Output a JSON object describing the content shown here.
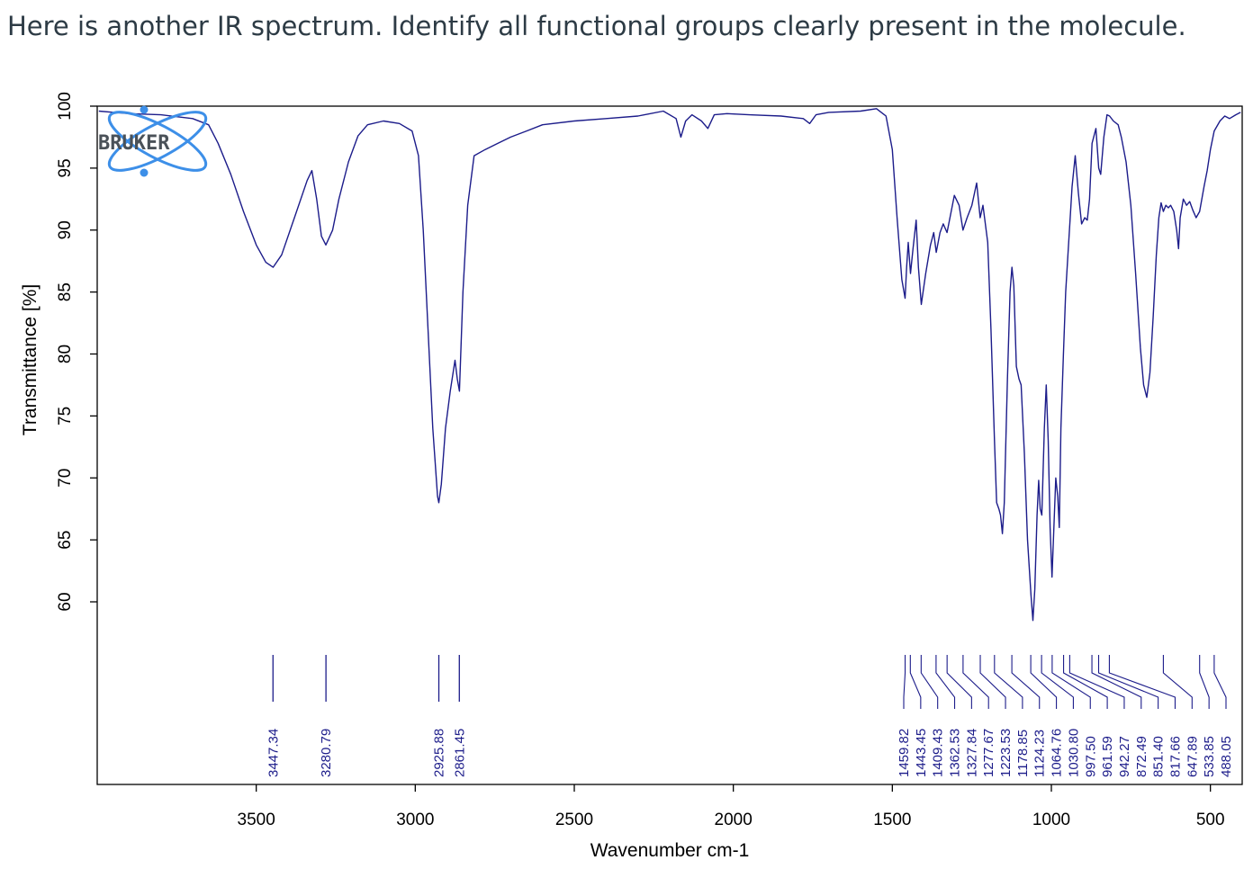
{
  "question": "Here is another IR spectrum. Identify all functional groups clearly present in the molecule.",
  "logo": {
    "text": "BRUKER",
    "icon": "atom-icon",
    "color": "#3d8fe8"
  },
  "colors": {
    "spectrum": "#1c1c8a",
    "peaklines": "#1c1c8a",
    "axis": "#000000"
  },
  "chart_data": {
    "type": "line",
    "title": "",
    "xlabel": "Wavenumber cm-1",
    "ylabel": "Transmittance [%]",
    "xlim": [
      4000,
      400
    ],
    "ylim": [
      50,
      100
    ],
    "x_reversed": true,
    "grid": false,
    "xticks": [
      3500,
      3000,
      2500,
      2000,
      1500,
      1000,
      500
    ],
    "yticks": [
      60,
      65,
      70,
      75,
      80,
      85,
      90,
      95,
      100
    ],
    "series": [
      {
        "points": [
          [
            3995,
            99.6
          ],
          [
            3900,
            99.4
          ],
          [
            3800,
            99.3
          ],
          [
            3700,
            99.0
          ],
          [
            3650,
            98.5
          ],
          [
            3620,
            97.0
          ],
          [
            3580,
            94.5
          ],
          [
            3540,
            91.5
          ],
          [
            3500,
            88.8
          ],
          [
            3470,
            87.4
          ],
          [
            3447,
            87.0
          ],
          [
            3420,
            88.0
          ],
          [
            3380,
            91.0
          ],
          [
            3340,
            94.0
          ],
          [
            3325,
            94.8
          ],
          [
            3310,
            92.5
          ],
          [
            3295,
            89.5
          ],
          [
            3281,
            88.8
          ],
          [
            3260,
            90.0
          ],
          [
            3240,
            92.5
          ],
          [
            3210,
            95.5
          ],
          [
            3180,
            97.6
          ],
          [
            3150,
            98.5
          ],
          [
            3100,
            98.8
          ],
          [
            3050,
            98.6
          ],
          [
            3010,
            98.0
          ],
          [
            2990,
            96.0
          ],
          [
            2975,
            90.0
          ],
          [
            2960,
            82.0
          ],
          [
            2945,
            74.0
          ],
          [
            2930,
            68.5
          ],
          [
            2926,
            68.0
          ],
          [
            2918,
            69.5
          ],
          [
            2905,
            74.0
          ],
          [
            2890,
            77.0
          ],
          [
            2875,
            79.5
          ],
          [
            2868,
            78.0
          ],
          [
            2861,
            77.0
          ],
          [
            2850,
            85.0
          ],
          [
            2835,
            92.0
          ],
          [
            2815,
            96.0
          ],
          [
            2780,
            96.5
          ],
          [
            2740,
            97.0
          ],
          [
            2700,
            97.5
          ],
          [
            2650,
            98.0
          ],
          [
            2600,
            98.5
          ],
          [
            2500,
            98.8
          ],
          [
            2400,
            99.0
          ],
          [
            2300,
            99.2
          ],
          [
            2220,
            99.6
          ],
          [
            2180,
            99.0
          ],
          [
            2165,
            97.5
          ],
          [
            2150,
            98.8
          ],
          [
            2130,
            99.3
          ],
          [
            2100,
            98.8
          ],
          [
            2080,
            98.2
          ],
          [
            2060,
            99.3
          ],
          [
            2020,
            99.4
          ],
          [
            1950,
            99.3
          ],
          [
            1850,
            99.2
          ],
          [
            1780,
            99.0
          ],
          [
            1760,
            98.6
          ],
          [
            1740,
            99.3
          ],
          [
            1700,
            99.5
          ],
          [
            1600,
            99.6
          ],
          [
            1550,
            99.8
          ],
          [
            1520,
            99.2
          ],
          [
            1500,
            96.5
          ],
          [
            1485,
            91.0
          ],
          [
            1470,
            86.0
          ],
          [
            1460,
            84.5
          ],
          [
            1455,
            87.0
          ],
          [
            1450,
            89.0
          ],
          [
            1443,
            86.5
          ],
          [
            1435,
            88.5
          ],
          [
            1425,
            90.8
          ],
          [
            1418,
            87.0
          ],
          [
            1409,
            84.0
          ],
          [
            1395,
            86.5
          ],
          [
            1380,
            88.8
          ],
          [
            1370,
            89.8
          ],
          [
            1362,
            88.2
          ],
          [
            1350,
            89.8
          ],
          [
            1340,
            90.5
          ],
          [
            1328,
            89.8
          ],
          [
            1315,
            91.5
          ],
          [
            1305,
            92.8
          ],
          [
            1290,
            92.0
          ],
          [
            1278,
            90.0
          ],
          [
            1265,
            91.0
          ],
          [
            1250,
            92.0
          ],
          [
            1235,
            93.8
          ],
          [
            1224,
            91.0
          ],
          [
            1215,
            92.0
          ],
          [
            1200,
            89.0
          ],
          [
            1190,
            82.0
          ],
          [
            1179,
            73.0
          ],
          [
            1172,
            68.0
          ],
          [
            1165,
            67.5
          ],
          [
            1160,
            67.0
          ],
          [
            1154,
            65.5
          ],
          [
            1148,
            68.0
          ],
          [
            1138,
            78.0
          ],
          [
            1130,
            85.0
          ],
          [
            1124,
            87.0
          ],
          [
            1118,
            85.5
          ],
          [
            1110,
            79.0
          ],
          [
            1102,
            78.0
          ],
          [
            1095,
            77.5
          ],
          [
            1085,
            72.0
          ],
          [
            1075,
            65.0
          ],
          [
            1064,
            60.5
          ],
          [
            1058,
            58.5
          ],
          [
            1052,
            61.0
          ],
          [
            1045,
            67.0
          ],
          [
            1040,
            69.8
          ],
          [
            1035,
            67.5
          ],
          [
            1030,
            67.0
          ],
          [
            1022,
            74.0
          ],
          [
            1016,
            77.5
          ],
          [
            1010,
            73.0
          ],
          [
            1004,
            66.0
          ],
          [
            998,
            62.0
          ],
          [
            992,
            66.0
          ],
          [
            986,
            70.0
          ],
          [
            980,
            68.5
          ],
          [
            975,
            66.0
          ],
          [
            970,
            74.0
          ],
          [
            962,
            80.0
          ],
          [
            955,
            85.0
          ],
          [
            948,
            88.0
          ],
          [
            942,
            90.5
          ],
          [
            935,
            93.5
          ],
          [
            925,
            96.0
          ],
          [
            915,
            93.0
          ],
          [
            905,
            90.5
          ],
          [
            895,
            91.0
          ],
          [
            887,
            90.8
          ],
          [
            880,
            92.5
          ],
          [
            872,
            97.0
          ],
          [
            860,
            98.2
          ],
          [
            851,
            95.0
          ],
          [
            845,
            94.5
          ],
          [
            835,
            97.5
          ],
          [
            825,
            99.3
          ],
          [
            817,
            99.2
          ],
          [
            805,
            98.8
          ],
          [
            790,
            98.5
          ],
          [
            780,
            97.5
          ],
          [
            765,
            95.5
          ],
          [
            750,
            92.0
          ],
          [
            735,
            86.5
          ],
          [
            720,
            80.5
          ],
          [
            710,
            77.5
          ],
          [
            700,
            76.5
          ],
          [
            690,
            78.5
          ],
          [
            680,
            83.0
          ],
          [
            670,
            88.0
          ],
          [
            662,
            91.0
          ],
          [
            655,
            92.2
          ],
          [
            648,
            91.5
          ],
          [
            640,
            92.0
          ],
          [
            632,
            91.8
          ],
          [
            625,
            92.0
          ],
          [
            615,
            91.5
          ],
          [
            606,
            90.0
          ],
          [
            600,
            88.5
          ],
          [
            595,
            91.0
          ],
          [
            585,
            92.5
          ],
          [
            575,
            92.0
          ],
          [
            565,
            92.3
          ],
          [
            555,
            91.6
          ],
          [
            545,
            91.0
          ],
          [
            534,
            91.5
          ],
          [
            520,
            93.5
          ],
          [
            510,
            94.8
          ],
          [
            500,
            96.5
          ],
          [
            488,
            98.0
          ],
          [
            470,
            98.8
          ],
          [
            455,
            99.2
          ],
          [
            440,
            99.0
          ],
          [
            420,
            99.3
          ],
          [
            405,
            99.5
          ]
        ]
      }
    ],
    "peak_labels": [
      {
        "x": 3447.34,
        "text": "3447.34"
      },
      {
        "x": 3280.79,
        "text": "3280.79"
      },
      {
        "x": 2925.88,
        "text": "2925.88"
      },
      {
        "x": 2861.45,
        "text": "2861.45"
      },
      {
        "x": 1459.82,
        "text": "1459.82"
      },
      {
        "x": 1443.45,
        "text": "1443.45"
      },
      {
        "x": 1409.43,
        "text": "1409.43"
      },
      {
        "x": 1362.53,
        "text": "1362.53"
      },
      {
        "x": 1327.84,
        "text": "1327.84"
      },
      {
        "x": 1277.67,
        "text": "1277.67"
      },
      {
        "x": 1223.53,
        "text": "1223.53"
      },
      {
        "x": 1178.85,
        "text": "1178.85"
      },
      {
        "x": 1124.23,
        "text": "1124.23"
      },
      {
        "x": 1064.76,
        "text": "1064.76"
      },
      {
        "x": 1030.8,
        "text": "1030.80"
      },
      {
        "x": 997.5,
        "text": "997.50"
      },
      {
        "x": 961.59,
        "text": "961.59"
      },
      {
        "x": 942.27,
        "text": "942.27"
      },
      {
        "x": 872.49,
        "text": "872.49"
      },
      {
        "x": 851.4,
        "text": "851.40"
      },
      {
        "x": 817.66,
        "text": "817.66"
      },
      {
        "x": 647.89,
        "text": "647.89"
      },
      {
        "x": 533.85,
        "text": "533.85"
      },
      {
        "x": 488.05,
        "text": "488.05"
      }
    ]
  }
}
